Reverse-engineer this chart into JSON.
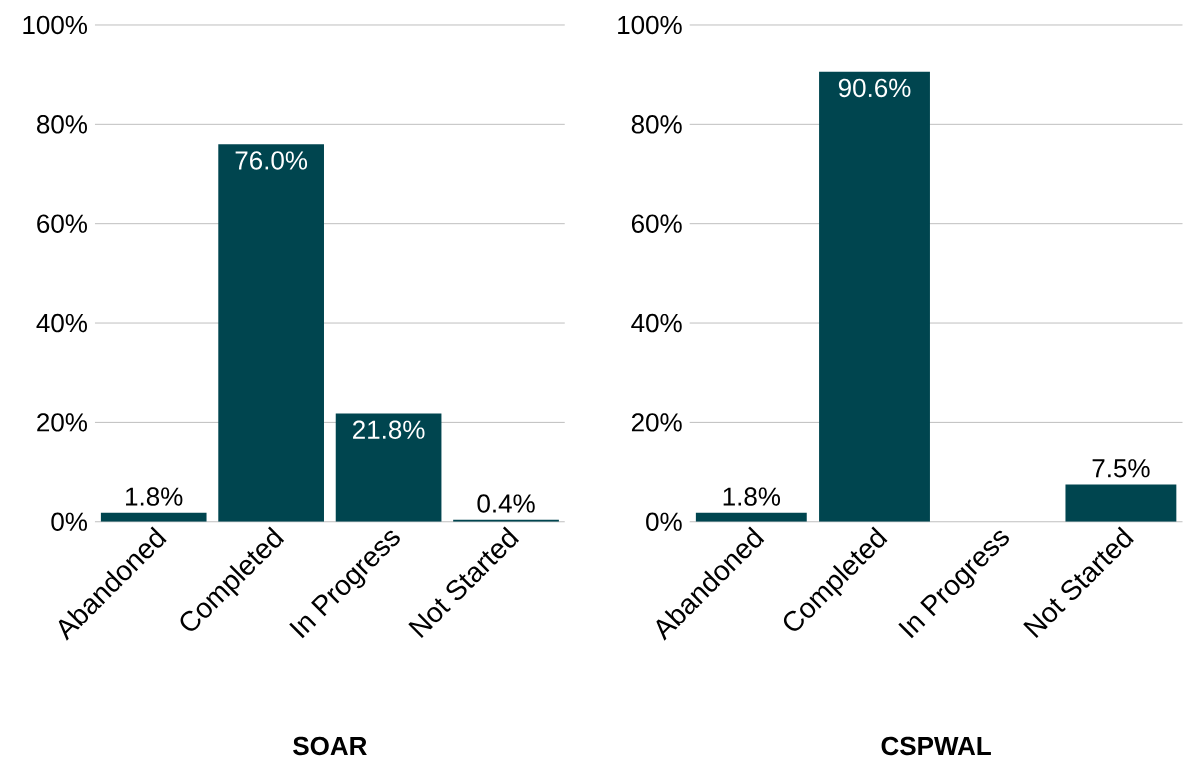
{
  "chart_data": [
    {
      "type": "bar",
      "title": "SOAR",
      "categories": [
        "Abandoned",
        "Completed",
        "In Progress",
        "Not Started"
      ],
      "color": "#00454f",
      "values": [
        1.8,
        76.0,
        21.8,
        0.4
      ],
      "value_labels": [
        "1.8%",
        "76.0%",
        "21.8%",
        "0.4%"
      ],
      "ylim": [
        0,
        100
      ],
      "yticks": [
        {
          "value": 0,
          "label": "0%"
        },
        {
          "value": 20,
          "label": "20%"
        },
        {
          "value": 40,
          "label": "40%"
        },
        {
          "value": 60,
          "label": "60%"
        },
        {
          "value": 80,
          "label": "80%"
        },
        {
          "value": 100,
          "label": "100%"
        }
      ],
      "grid": "y"
    },
    {
      "type": "bar",
      "title": "CSPWAL",
      "categories": [
        "Abandoned",
        "Completed",
        "In Progress",
        "Not Started"
      ],
      "color": "#00454f",
      "values": [
        1.8,
        90.6,
        null,
        7.5
      ],
      "value_labels": [
        "1.8%",
        "90.6%",
        null,
        "7.5%"
      ],
      "ylim": [
        0,
        100
      ],
      "yticks": [
        {
          "value": 0,
          "label": "0%"
        },
        {
          "value": 20,
          "label": "20%"
        },
        {
          "value": 40,
          "label": "40%"
        },
        {
          "value": 60,
          "label": "60%"
        },
        {
          "value": 80,
          "label": "80%"
        },
        {
          "value": 100,
          "label": "100%"
        }
      ],
      "grid": "y"
    }
  ]
}
